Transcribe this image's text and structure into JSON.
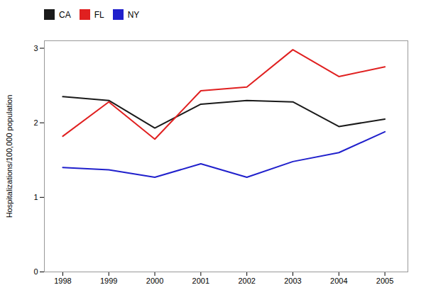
{
  "chart_data": {
    "type": "line",
    "x": [
      1998,
      1999,
      2000,
      2001,
      2002,
      2003,
      2004,
      2005
    ],
    "series": [
      {
        "name": "CA",
        "color": "#1a1a1a",
        "values": [
          2.35,
          2.3,
          1.93,
          2.25,
          2.3,
          2.28,
          1.95,
          2.05
        ]
      },
      {
        "name": "FL",
        "color": "#e02020",
        "values": [
          1.82,
          2.28,
          1.78,
          2.43,
          2.48,
          2.98,
          2.62,
          2.75
        ]
      },
      {
        "name": "NY",
        "color": "#2020cc",
        "values": [
          1.4,
          1.37,
          1.27,
          1.45,
          1.27,
          1.48,
          1.6,
          1.88
        ]
      }
    ],
    "ylabel": "Hospitalizations/100,000 population",
    "xlim": [
      1997.6,
      2005.5
    ],
    "xticks": [
      1998,
      1999,
      2000,
      2001,
      2002,
      2003,
      2004,
      2005
    ],
    "ylim": [
      0,
      3.1
    ],
    "yticks": [
      0,
      1,
      2,
      3
    ],
    "grid": false,
    "legend": "upper left"
  }
}
